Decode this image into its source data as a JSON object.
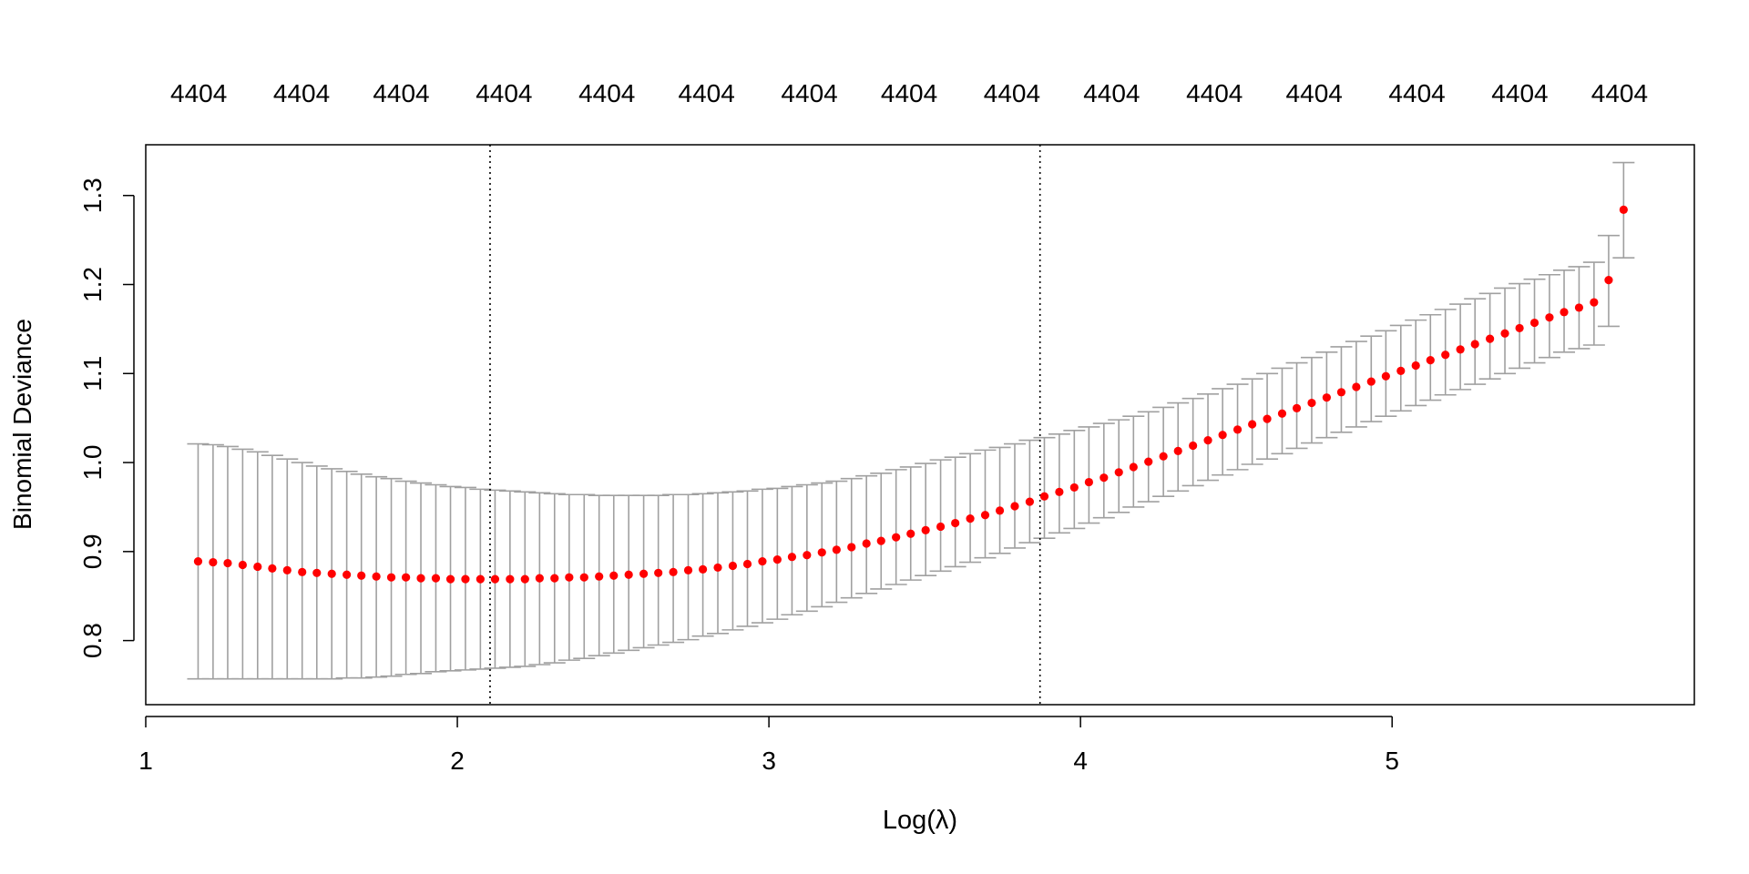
{
  "chart_data": {
    "type": "scatter",
    "title": "",
    "xlabel": "Log(λ)",
    "ylabel": "Binomial Deviance",
    "xlim": [
      1.0,
      5.97
    ],
    "ylim": [
      0.728,
      1.357
    ],
    "x_ticks": [
      1,
      2,
      3,
      4,
      5
    ],
    "x_tick_labels": [
      "1",
      "2",
      "3",
      "4",
      "5"
    ],
    "y_ticks": [
      0.8,
      0.9,
      1.0,
      1.1,
      1.2,
      1.3
    ],
    "y_tick_labels": [
      "0.8",
      "0.9",
      "1.0",
      "1.1",
      "1.2",
      "1.3"
    ],
    "top_axis_labels": [
      "4404",
      "4404",
      "4404",
      "4404",
      "4404",
      "4404",
      "4404",
      "4404",
      "4404",
      "4404",
      "4404",
      "4404",
      "4404",
      "4404",
      "4404"
    ],
    "top_axis_positions": [
      1.17,
      1.5,
      1.82,
      2.15,
      2.48,
      2.8,
      3.13,
      3.45,
      3.78,
      4.1,
      4.43,
      4.75,
      5.08,
      5.41,
      5.73
    ],
    "vlines": [
      {
        "x": 2.105,
        "style": "dotted"
      },
      {
        "x": 3.87,
        "style": "dotted"
      }
    ],
    "point_color": "#ff0000",
    "errorbar_color": "#a0a0a0",
    "grid": false,
    "series": [
      {
        "x": [
          1.168,
          1.216,
          1.263,
          1.311,
          1.359,
          1.406,
          1.454,
          1.502,
          1.549,
          1.597,
          1.645,
          1.692,
          1.74,
          1.788,
          1.835,
          1.883,
          1.931,
          1.978,
          2.026,
          2.074,
          2.121,
          2.169,
          2.217,
          2.264,
          2.312,
          2.359,
          2.407,
          2.455,
          2.502,
          2.55,
          2.598,
          2.645,
          2.693,
          2.741,
          2.788,
          2.836,
          2.884,
          2.931,
          2.979,
          3.027,
          3.074,
          3.122,
          3.17,
          3.217,
          3.265,
          3.313,
          3.36,
          3.408,
          3.455,
          3.503,
          3.551,
          3.598,
          3.646,
          3.694,
          3.741,
          3.789,
          3.837,
          3.884,
          3.932,
          3.98,
          4.027,
          4.075,
          4.123,
          4.17,
          4.218,
          4.266,
          4.313,
          4.361,
          4.409,
          4.456,
          4.504,
          4.551,
          4.599,
          4.647,
          4.694,
          4.742,
          4.79,
          4.837,
          4.885,
          4.933,
          4.98,
          5.028,
          5.076,
          5.123,
          5.171,
          5.219,
          5.266,
          5.314,
          5.362,
          5.409,
          5.457,
          5.505,
          5.552,
          5.6,
          5.648,
          5.695,
          5.743
        ],
        "y": [
          0.889,
          0.888,
          0.887,
          0.885,
          0.883,
          0.881,
          0.879,
          0.877,
          0.876,
          0.875,
          0.874,
          0.873,
          0.872,
          0.871,
          0.871,
          0.87,
          0.87,
          0.869,
          0.869,
          0.869,
          0.869,
          0.869,
          0.869,
          0.87,
          0.87,
          0.871,
          0.871,
          0.872,
          0.873,
          0.874,
          0.875,
          0.876,
          0.877,
          0.879,
          0.88,
          0.882,
          0.884,
          0.886,
          0.889,
          0.891,
          0.894,
          0.896,
          0.899,
          0.902,
          0.905,
          0.909,
          0.912,
          0.916,
          0.92,
          0.924,
          0.928,
          0.932,
          0.937,
          0.941,
          0.946,
          0.951,
          0.956,
          0.962,
          0.967,
          0.972,
          0.978,
          0.983,
          0.989,
          0.995,
          1.001,
          1.007,
          1.013,
          1.019,
          1.025,
          1.031,
          1.037,
          1.043,
          1.049,
          1.055,
          1.061,
          1.067,
          1.073,
          1.079,
          1.085,
          1.091,
          1.097,
          1.103,
          1.109,
          1.115,
          1.121,
          1.127,
          1.133,
          1.139,
          1.145,
          1.151,
          1.157,
          1.163,
          1.169,
          1.174,
          1.18,
          1.205,
          1.284
        ],
        "upper": [
          1.021,
          1.02,
          1.018,
          1.015,
          1.012,
          1.008,
          1.004,
          1.0,
          0.996,
          0.993,
          0.99,
          0.987,
          0.984,
          0.982,
          0.979,
          0.977,
          0.975,
          0.973,
          0.972,
          0.97,
          0.969,
          0.968,
          0.967,
          0.966,
          0.965,
          0.964,
          0.964,
          0.963,
          0.963,
          0.963,
          0.963,
          0.963,
          0.964,
          0.964,
          0.965,
          0.966,
          0.967,
          0.968,
          0.97,
          0.971,
          0.973,
          0.975,
          0.977,
          0.979,
          0.982,
          0.985,
          0.988,
          0.992,
          0.995,
          0.999,
          1.003,
          1.006,
          1.01,
          1.014,
          1.017,
          1.021,
          1.025,
          1.028,
          1.032,
          1.036,
          1.04,
          1.044,
          1.048,
          1.052,
          1.057,
          1.062,
          1.067,
          1.072,
          1.077,
          1.083,
          1.088,
          1.094,
          1.1,
          1.106,
          1.112,
          1.118,
          1.124,
          1.13,
          1.136,
          1.142,
          1.148,
          1.154,
          1.16,
          1.166,
          1.172,
          1.178,
          1.184,
          1.19,
          1.196,
          1.201,
          1.206,
          1.211,
          1.216,
          1.22,
          1.225,
          1.255,
          1.337
        ],
        "lower": [
          0.757,
          0.757,
          0.757,
          0.757,
          0.757,
          0.757,
          0.757,
          0.757,
          0.757,
          0.757,
          0.758,
          0.758,
          0.759,
          0.76,
          0.762,
          0.763,
          0.765,
          0.766,
          0.767,
          0.768,
          0.769,
          0.77,
          0.771,
          0.773,
          0.775,
          0.778,
          0.78,
          0.783,
          0.786,
          0.789,
          0.792,
          0.795,
          0.798,
          0.801,
          0.805,
          0.808,
          0.812,
          0.816,
          0.82,
          0.824,
          0.829,
          0.833,
          0.838,
          0.843,
          0.848,
          0.853,
          0.858,
          0.863,
          0.868,
          0.873,
          0.878,
          0.883,
          0.888,
          0.893,
          0.898,
          0.904,
          0.91,
          0.915,
          0.921,
          0.926,
          0.932,
          0.938,
          0.944,
          0.95,
          0.956,
          0.962,
          0.968,
          0.974,
          0.98,
          0.986,
          0.992,
          0.998,
          1.004,
          1.01,
          1.016,
          1.022,
          1.028,
          1.034,
          1.04,
          1.046,
          1.052,
          1.058,
          1.064,
          1.07,
          1.076,
          1.082,
          1.088,
          1.094,
          1.1,
          1.106,
          1.112,
          1.118,
          1.124,
          1.128,
          1.132,
          1.153,
          1.23
        ]
      }
    ]
  }
}
